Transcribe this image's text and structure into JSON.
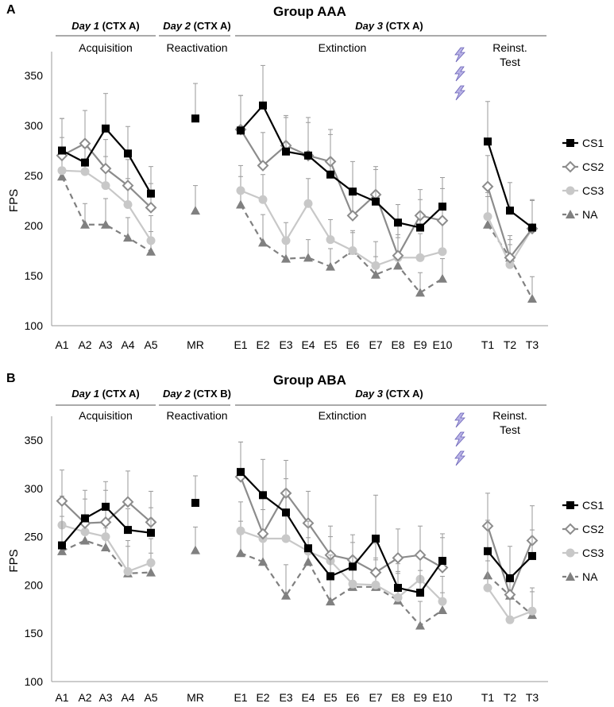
{
  "colors": {
    "CS1": "#000000",
    "CS2": "#8c8c8c",
    "CS3": "#c8c8c8",
    "NA": "#808080",
    "axis": "#999999",
    "bolt_fill": "#b8b2e6",
    "bolt_stroke": "#6a62b8"
  },
  "chart_data": [
    {
      "type": "line",
      "panel_label": "A",
      "title": "Group AAA",
      "ylabel": "FPS",
      "ylim": [
        100,
        370
      ],
      "yticks": [
        "100",
        "150",
        "200",
        "250",
        "300",
        "350"
      ],
      "categories": [
        "A1",
        "A2",
        "A3",
        "A4",
        "A5",
        "MR",
        "E1",
        "E2",
        "E3",
        "E4",
        "E5",
        "E6",
        "E7",
        "E8",
        "E9",
        "E10",
        "T1",
        "T2",
        "T3"
      ],
      "days": [
        {
          "day": "Day 1",
          "ctx": " (CTX A)"
        },
        {
          "day": "Day 2",
          "ctx": " (CTX A)"
        },
        {
          "day": "Day 3",
          "ctx": " (CTX A)"
        }
      ],
      "phases": [
        "Acquisition",
        "Reactivation",
        "Extinction",
        "Reinst.",
        "Test"
      ],
      "legend": [
        "CS1",
        "CS2",
        "CS3",
        "NA"
      ],
      "series": [
        {
          "name": "CS1",
          "values": [
            275,
            263,
            297,
            272,
            232,
            307,
            295,
            320,
            274,
            270,
            251,
            234,
            224,
            203,
            198,
            219,
            284,
            215,
            198
          ],
          "errors": [
            32,
            0,
            35,
            27,
            27,
            35,
            35,
            40,
            34,
            33,
            40,
            30,
            32,
            18,
            28,
            29,
            40,
            28,
            28
          ]
        },
        {
          "name": "CS2",
          "values": [
            270,
            282,
            257,
            240,
            218,
            0,
            296,
            260,
            280,
            270,
            264,
            210,
            231,
            170,
            210,
            205,
            239,
            168,
            197
          ],
          "errors": [
            37,
            33,
            29,
            26,
            24,
            0,
            34,
            33,
            30,
            38,
            32,
            24,
            28,
            30,
            26,
            32,
            31,
            22,
            28
          ]
        },
        {
          "name": "CS3",
          "values": [
            255,
            254,
            240,
            221,
            185,
            0,
            235,
            226,
            185,
            222,
            186,
            175,
            160,
            168,
            168,
            174,
            209,
            161,
            197
          ],
          "errors": [
            33,
            24,
            29,
            26,
            25,
            0,
            25,
            25,
            18,
            25,
            20,
            20,
            24,
            23,
            24,
            28,
            24,
            20,
            28
          ]
        },
        {
          "name": "NA",
          "values": [
            249,
            201,
            201,
            188,
            174,
            215,
            221,
            183,
            167,
            168,
            159,
            175,
            151,
            160,
            133,
            147,
            201,
            168,
            127
          ],
          "errors": [
            29,
            21,
            26,
            20,
            20,
            25,
            28,
            28,
            15,
            18,
            18,
            18,
            18,
            28,
            20,
            20,
            28,
            18,
            22
          ]
        }
      ]
    },
    {
      "type": "line",
      "panel_label": "B",
      "title": "Group ABA",
      "ylabel": "FPS",
      "ylim": [
        100,
        370
      ],
      "yticks": [
        "100",
        "150",
        "200",
        "250",
        "300",
        "350"
      ],
      "categories": [
        "A1",
        "A2",
        "A3",
        "A4",
        "A5",
        "MR",
        "E1",
        "E2",
        "E3",
        "E4",
        "E5",
        "E6",
        "E7",
        "E8",
        "E9",
        "E10",
        "T1",
        "T2",
        "T3"
      ],
      "days": [
        {
          "day": "Day 1",
          "ctx": " (CTX A)"
        },
        {
          "day": "Day 2",
          "ctx": " (CTX B)"
        },
        {
          "day": "Day 3",
          "ctx": " (CTX A)"
        }
      ],
      "phases": [
        "Acquisition",
        "Reactivation",
        "Extinction",
        "Reinst.",
        "Test"
      ],
      "legend": [
        "CS1",
        "CS2",
        "CS3",
        "NA"
      ],
      "series": [
        {
          "name": "CS1",
          "values": [
            241,
            269,
            281,
            257,
            254,
            285,
            317,
            293,
            275,
            238,
            209,
            219,
            248,
            197,
            192,
            225,
            235,
            207,
            230
          ],
          "errors": [
            30,
            0,
            26,
            22,
            26,
            28,
            31,
            37,
            35,
            28,
            22,
            25,
            45,
            25,
            23,
            24,
            32,
            33,
            27
          ]
        },
        {
          "name": "CS2",
          "values": [
            287,
            264,
            265,
            286,
            265,
            0,
            312,
            253,
            295,
            264,
            231,
            226,
            213,
            228,
            231,
            218,
            261,
            190,
            246
          ],
          "errors": [
            32,
            34,
            33,
            32,
            32,
            0,
            36,
            40,
            34,
            33,
            30,
            26,
            30,
            30,
            30,
            35,
            34,
            20,
            36
          ]
        },
        {
          "name": "CS3",
          "values": [
            262,
            255,
            250,
            214,
            223,
            0,
            256,
            248,
            248,
            235,
            225,
            201,
            200,
            187,
            206,
            183,
            197,
            164,
            173
          ],
          "errors": [
            30,
            34,
            30,
            32,
            25,
            0,
            30,
            30,
            26,
            30,
            25,
            28,
            28,
            25,
            25,
            26,
            28,
            30,
            24
          ]
        },
        {
          "name": "NA",
          "values": [
            235,
            246,
            239,
            212,
            213,
            236,
            233,
            224,
            189,
            224,
            183,
            198,
            198,
            184,
            158,
            174,
            210,
            189,
            169
          ],
          "errors": [
            28,
            0,
            20,
            28,
            20,
            24,
            33,
            32,
            32,
            25,
            30,
            28,
            28,
            30,
            25,
            18,
            28,
            20,
            24
          ]
        }
      ]
    }
  ]
}
